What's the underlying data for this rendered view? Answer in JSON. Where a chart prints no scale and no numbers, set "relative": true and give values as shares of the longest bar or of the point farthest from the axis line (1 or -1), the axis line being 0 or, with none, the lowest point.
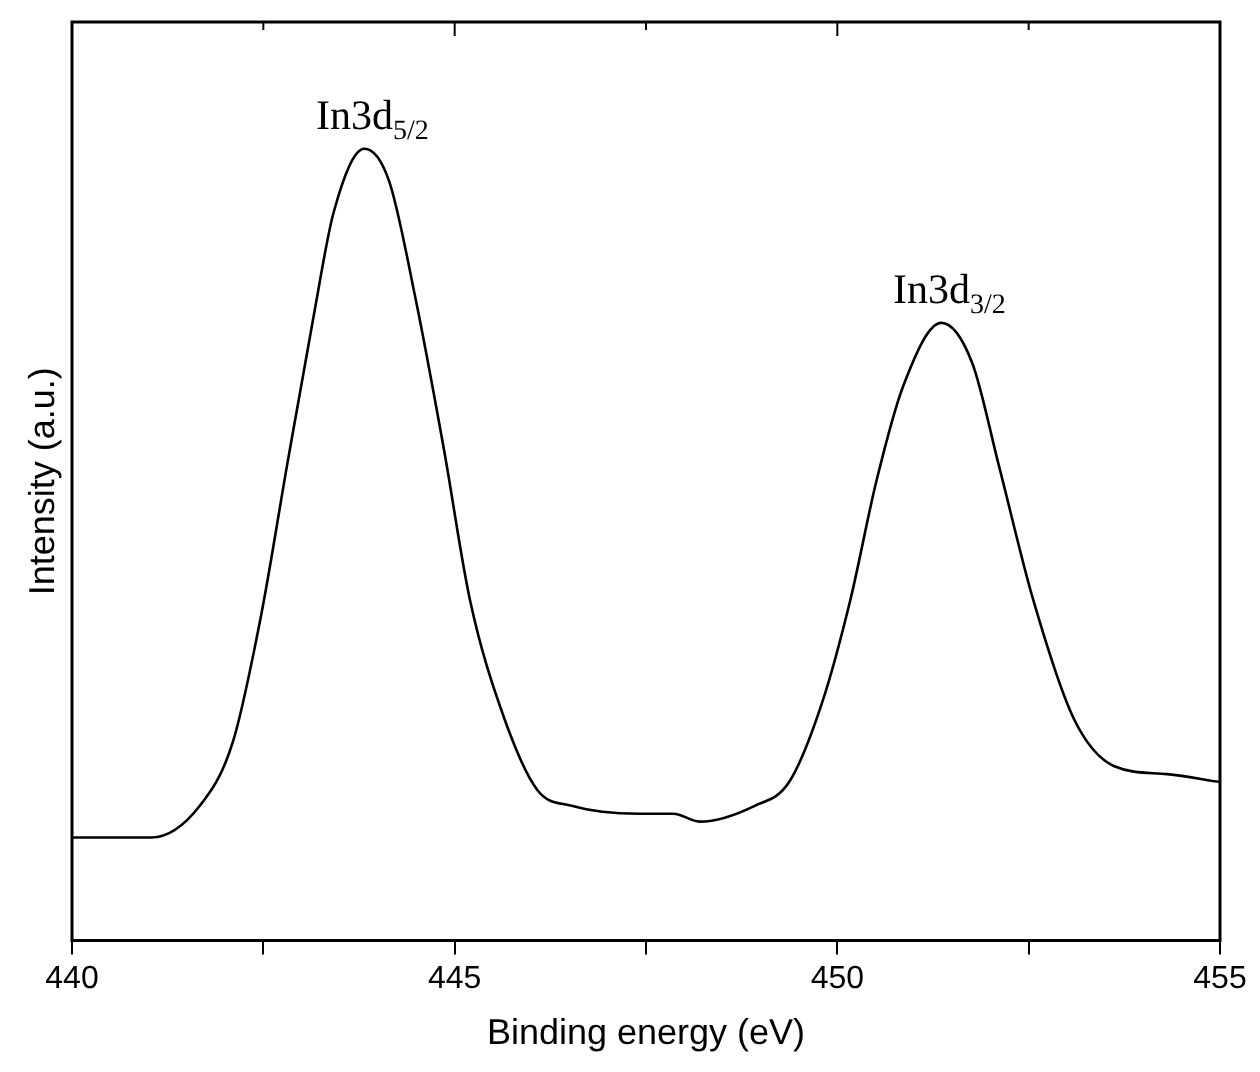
{
  "chart_data": {
    "type": "line",
    "xlabel": "Binding energy (eV)",
    "ylabel": "Intensity (a.u.)",
    "relative": true,
    "x": [
      440,
      441.04,
      441.67,
      442.1,
      442.47,
      442.81,
      443.16,
      443.42,
      443.82,
      444.14,
      444.49,
      444.86,
      445.2,
      445.65,
      446.08,
      446.53,
      447.41,
      447.86,
      448.2,
      448.92,
      449.37,
      449.8,
      450.17,
      450.51,
      450.86,
      451.36,
      451.76,
      452.11,
      452.56,
      453.09,
      453.62,
      454.31,
      455
    ],
    "series": [
      {
        "color": "#000000",
        "values": [
          0.13,
          0.13,
          0.17,
          0.25,
          0.41,
          0.6,
          0.79,
          0.92,
          1.0,
          0.96,
          0.81,
          0.62,
          0.43,
          0.28,
          0.19,
          0.17,
          0.16,
          0.16,
          0.15,
          0.17,
          0.2,
          0.3,
          0.43,
          0.58,
          0.7,
          0.78,
          0.73,
          0.6,
          0.43,
          0.28,
          0.22,
          0.21,
          0.2
        ]
      }
    ],
    "xlim": [
      440,
      455
    ],
    "xticks": [
      440,
      {
        "value": 442.5,
        "label": null
      },
      445,
      {
        "value": 447.5,
        "label": null
      },
      450,
      {
        "value": 452.5,
        "label": null
      },
      455
    ],
    "annotations": [
      {
        "text": "In3d$_{5/2}$",
        "x": 443.82,
        "y": 1.0
      },
      {
        "text": "In3d$_{3/2}$",
        "x": 451.36,
        "y": 0.78
      }
    ],
    "grid": false,
    "legend": false,
    "marker": "none",
    "line_style": "solid"
  }
}
